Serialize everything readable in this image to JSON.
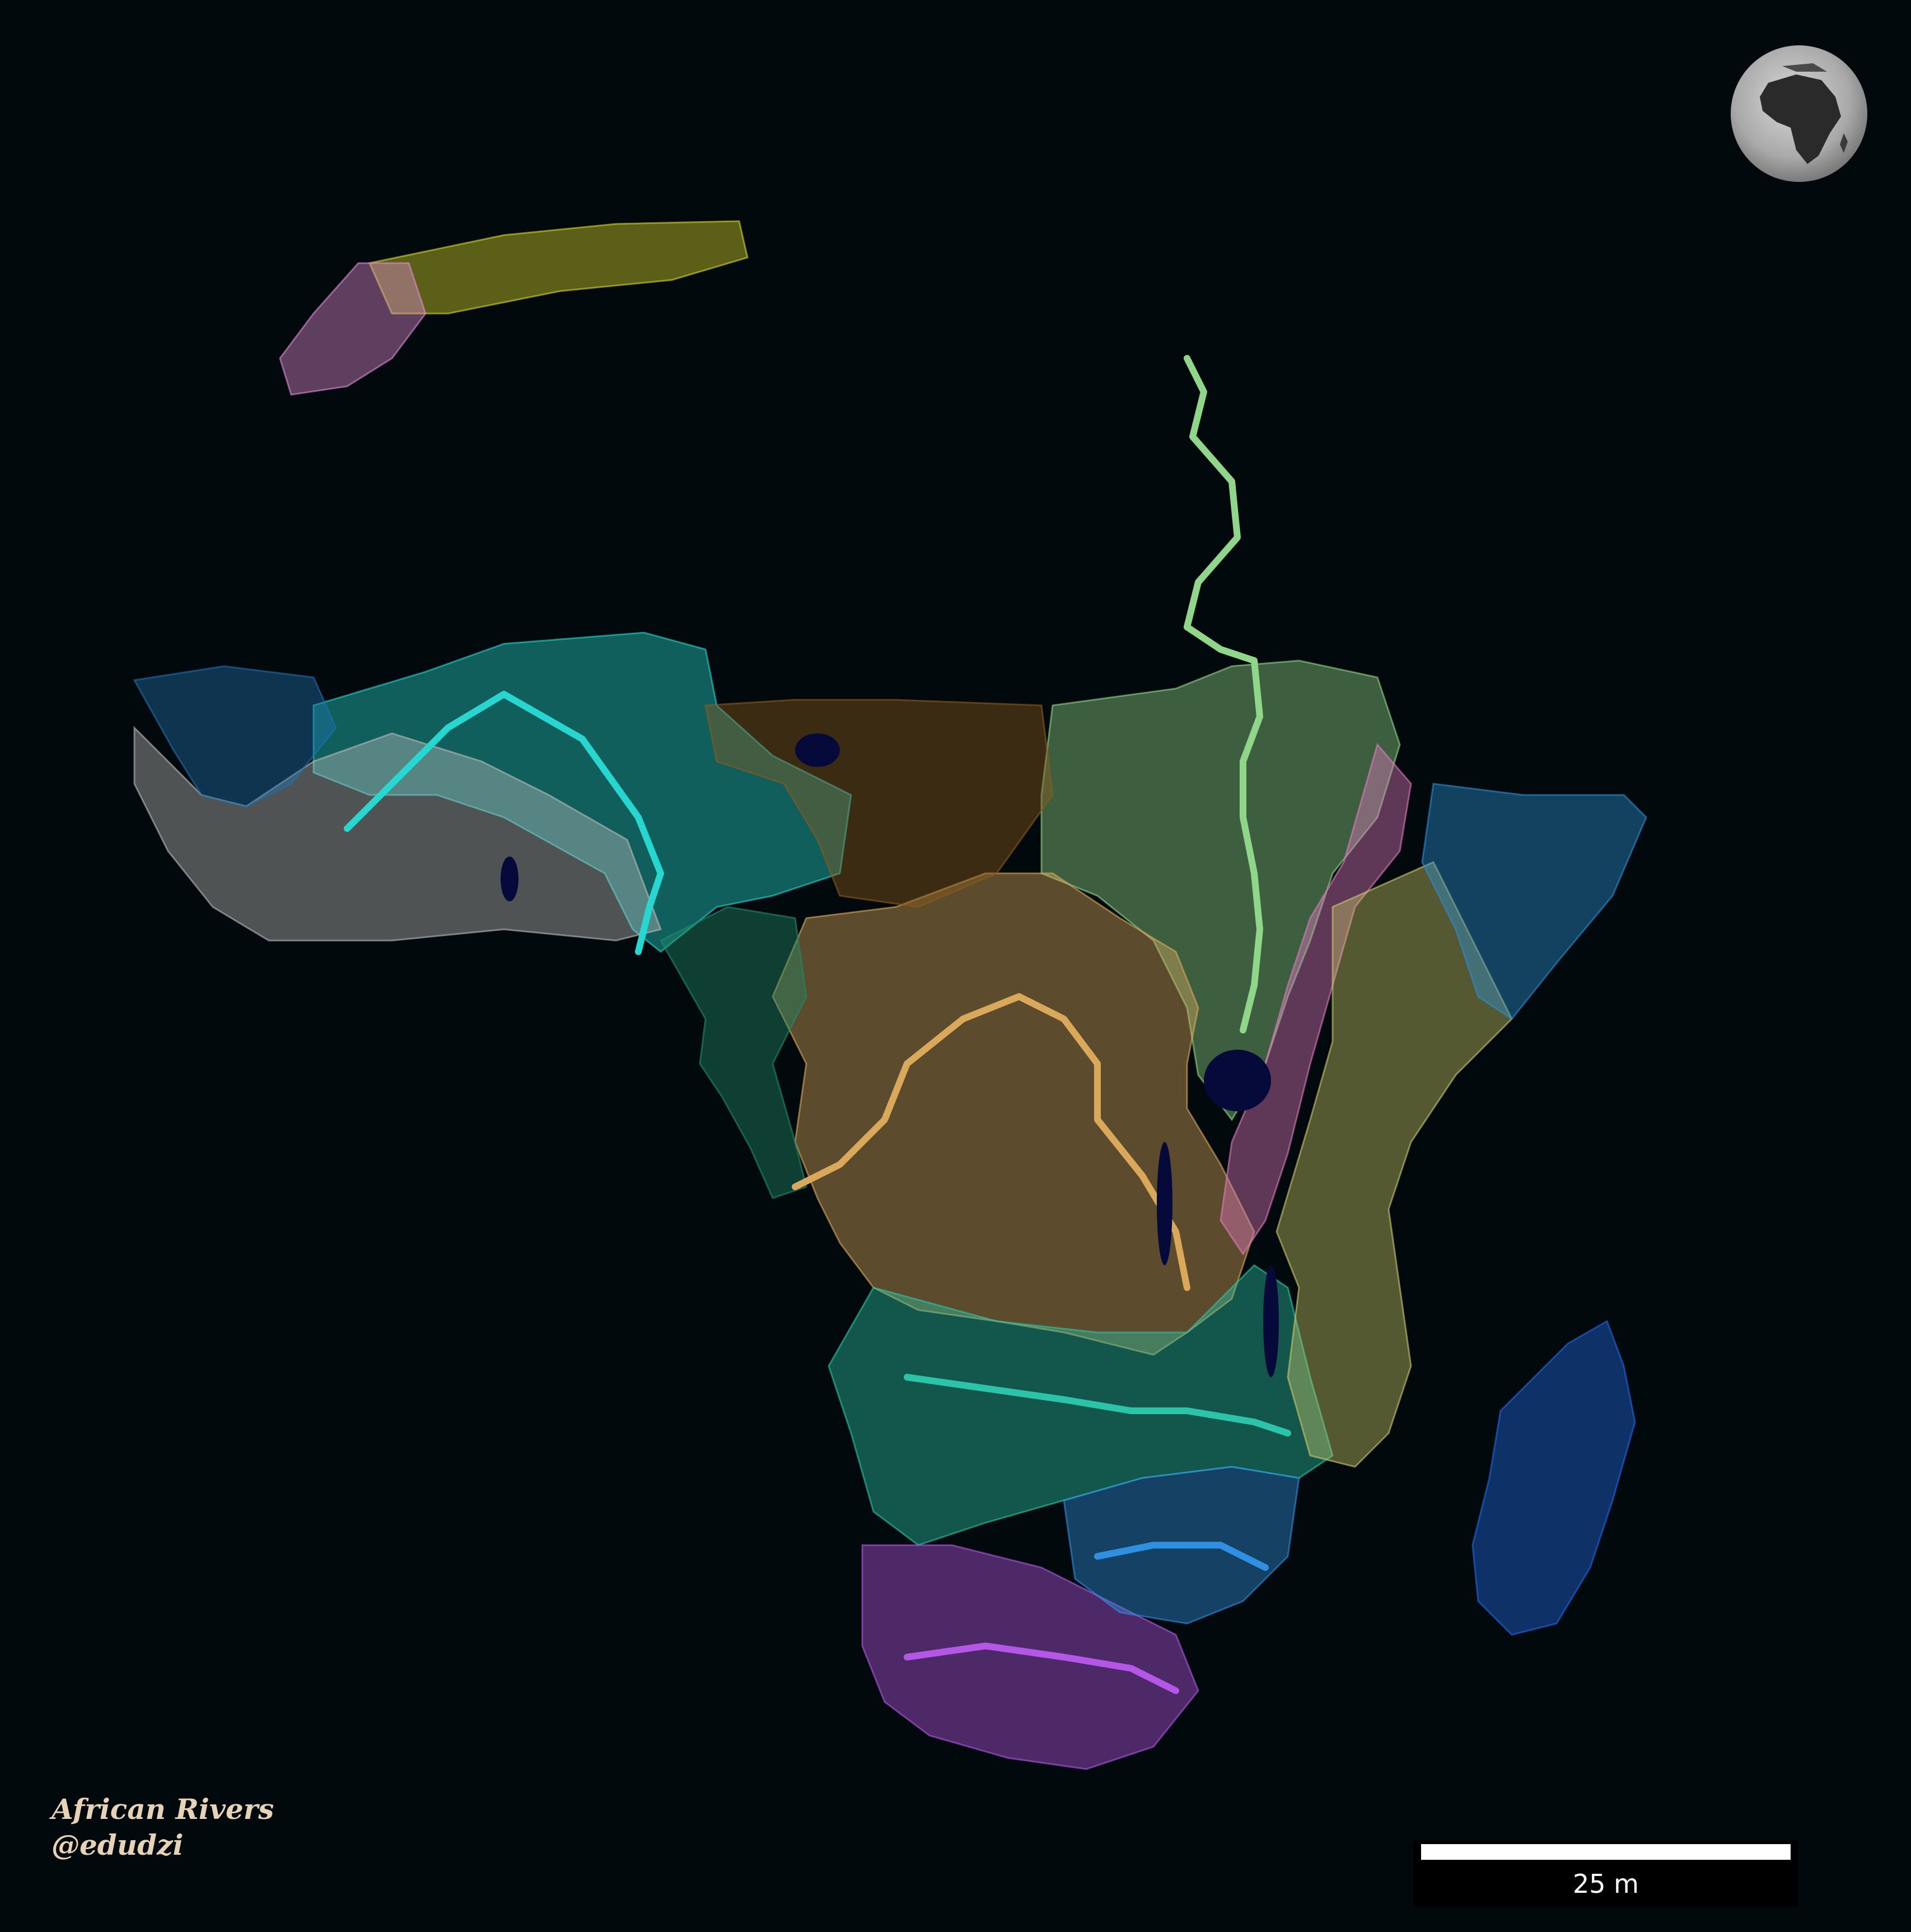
{
  "credit": {
    "title": "African Rivers",
    "author": "@edudzi"
  },
  "scalebar": {
    "label": "25 m"
  },
  "colors": {
    "background": "#02090c",
    "credit_text": "#e8d2b6",
    "scalebar": "#ffffff"
  },
  "basins": [
    {
      "id": "nile",
      "color": "#8fd68a"
    },
    {
      "id": "congo",
      "color": "#d9a85a"
    },
    {
      "id": "niger",
      "color": "#27d6cf"
    },
    {
      "id": "lake-chad",
      "color": "#8a5a1e"
    },
    {
      "id": "zambezi",
      "color": "#2bc4a8"
    },
    {
      "id": "orange",
      "color": "#b456e6"
    },
    {
      "id": "limpopo",
      "color": "#2f8fe0"
    },
    {
      "id": "madagascar",
      "color": "#1f6ae6"
    },
    {
      "id": "rift-valley",
      "color": "#e07ac0"
    },
    {
      "id": "east-coast",
      "color": "#c9c86a"
    },
    {
      "id": "horn",
      "color": "#2a8fd6"
    },
    {
      "id": "west-coast",
      "color": "#b9b9b9"
    },
    {
      "id": "atlas-north",
      "color": "#d6d62a"
    },
    {
      "id": "atlas-west",
      "color": "#e08ad6"
    },
    {
      "id": "senegal",
      "color": "#1f6fb0"
    },
    {
      "id": "central-coast",
      "color": "#1f8a6a"
    }
  ],
  "globe_icon": "earth-globe-icon"
}
